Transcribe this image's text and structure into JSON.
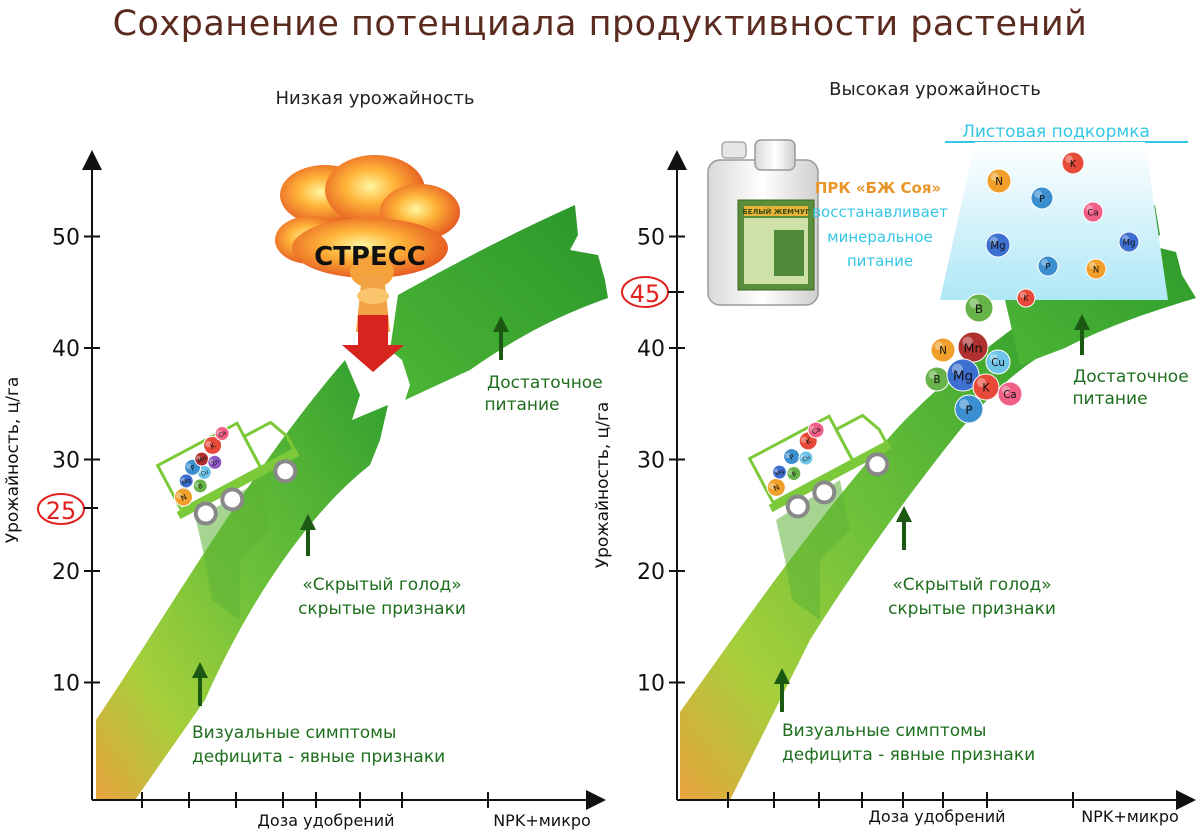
{
  "title": "Сохранение потенциала продуктивности растений",
  "colors": {
    "band_light": "#7bc63a",
    "band_dark": "#2c9b2c",
    "band_start": "#e8a33d",
    "text_green": "#1e6e1e",
    "annot_orange": "#e8952a",
    "annot_cyan": "#35c6e6",
    "marker_red": "#e0231e",
    "title_brown": "#5b2b20"
  },
  "left": {
    "subtitle": "Низкая урожайность",
    "ylabel": "Урожайность, ц/га",
    "xlabel": "Доза удобрений",
    "x_end_label": "NPK+микро",
    "y_ticks": [
      "10",
      "20",
      "30",
      "40",
      "50"
    ],
    "marker": "25",
    "stress_label": "СТРЕСС",
    "zone_sufficient": [
      "Достаточное",
      "питание"
    ],
    "zone_hidden": [
      "«Скрытый голод»",
      "скрытые признаки"
    ],
    "zone_visual": [
      "Визуальные симптомы",
      "дефицита - явные признаки"
    ],
    "truck_nutrients": [
      "N",
      "Mg",
      "B",
      "Cu",
      "P",
      "Mn",
      "Zn",
      "K",
      "Ca"
    ]
  },
  "right": {
    "subtitle": "Высокая урожайность",
    "ylabel": "Урожайность, ц/га",
    "xlabel": "Доза удобрений",
    "x_end_label": "NPK+микро",
    "y_ticks": [
      "10",
      "20",
      "30",
      "40",
      "50"
    ],
    "marker": "45",
    "foliar_label": "Листовая подкормка",
    "product_lines": [
      "ПРК «БЖ Соя»",
      "восстанавливает",
      "минеральное",
      "питание"
    ],
    "canister_label": "БЕЛЫЙ ЖЕМЧУГ",
    "zone_sufficient": [
      "Достаточное",
      "питание"
    ],
    "zone_hidden": [
      "«Скрытый голод»",
      "скрытые признаки"
    ],
    "zone_visual": [
      "Визуальные симптомы",
      "дефицита - явные признаки"
    ],
    "foliar_nutrients": [
      "N",
      "K",
      "P",
      "Ca",
      "Mg",
      "Mg",
      "P",
      "N",
      "K"
    ],
    "cluster_nutrients": [
      "B",
      "N",
      "Mn",
      "Cu",
      "B",
      "Mg",
      "K",
      "Ca",
      "P"
    ],
    "truck_nutrients": [
      "N",
      "Mg",
      "B",
      "P",
      "Cu",
      "K",
      "Ca"
    ]
  }
}
